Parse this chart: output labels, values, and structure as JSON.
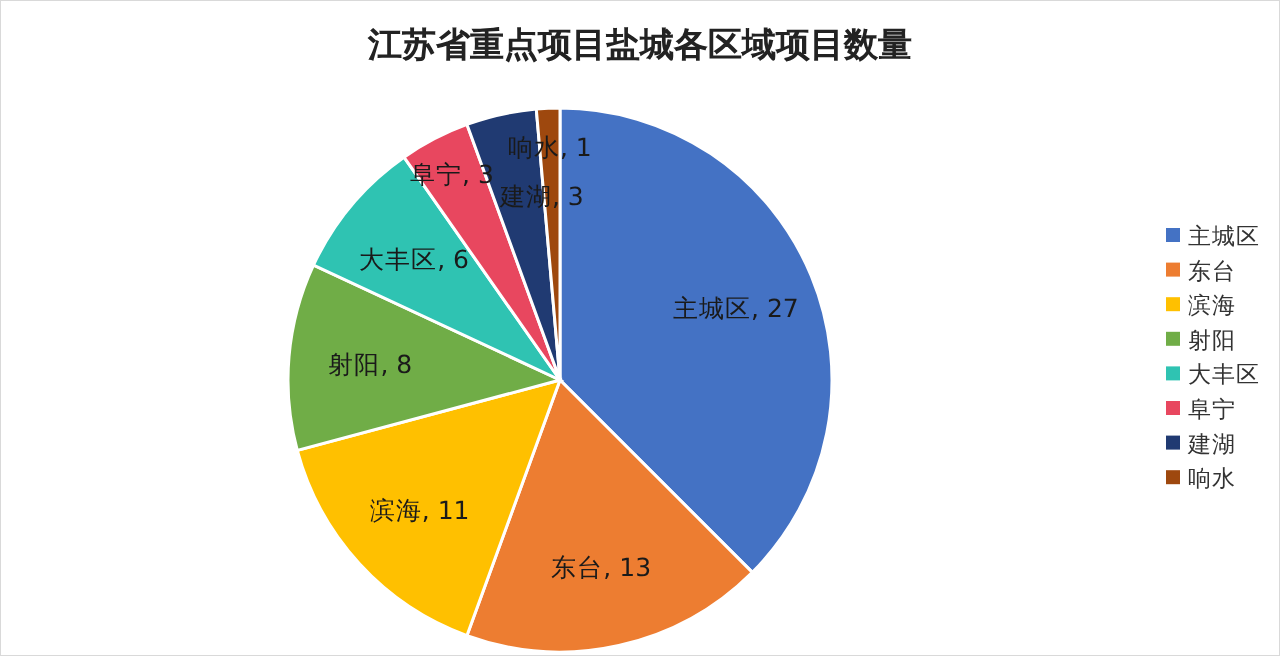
{
  "chart_data": {
    "type": "pie",
    "title": "江苏省重点项目盐城各区域项目数量",
    "categories": [
      "主城区",
      "东台",
      "滨海",
      "射阳",
      "大丰区",
      "阜宁",
      "建湖",
      "响水"
    ],
    "values": [
      27,
      13,
      11,
      8,
      6,
      3,
      3,
      1
    ],
    "value_labels": [
      "主城区, 27",
      "东台, 13",
      "滨海, 11",
      "射阳, 8",
      "大丰区, 6",
      "阜宁, 3",
      "建湖, 3",
      "响水, 1"
    ],
    "colors": [
      "#4472c4",
      "#ed7d31",
      "#ffc000",
      "#70ad47",
      "#2fc3b2",
      "#e8475f",
      "#203a72",
      "#9e480e"
    ],
    "legend": "right"
  }
}
